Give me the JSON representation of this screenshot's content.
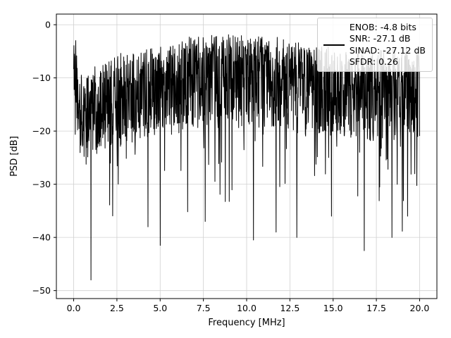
{
  "figure": {
    "background": "#ffffff"
  },
  "chart_data": {
    "type": "line",
    "title": "",
    "xlabel": "Frequency [MHz]",
    "ylabel": "PSD [dB]",
    "xlim": [
      -1,
      21
    ],
    "ylim": [
      -51.5,
      2
    ],
    "xticks": [
      0.0,
      2.5,
      5.0,
      7.5,
      10.0,
      12.5,
      15.0,
      17.5,
      20.0
    ],
    "xtick_labels": [
      "0.0",
      "2.5",
      "5.0",
      "7.5",
      "10.0",
      "12.5",
      "15.0",
      "17.5",
      "20.0"
    ],
    "yticks": [
      0,
      -10,
      -20,
      -30,
      -40,
      -50
    ],
    "ytick_labels": [
      "0",
      "−10",
      "−20",
      "−30",
      "−40",
      "−50"
    ],
    "grid": true,
    "grid_color": "#d0d0d0",
    "line_color": "#000000",
    "line_width": 1.0,
    "series_name": "psd-noise-spectrum",
    "noise_model": {
      "seed": 42,
      "n_points": 1500,
      "x_start": 0.0,
      "x_end": 20.0,
      "top_envelope": [
        [
          0.0,
          -2.0
        ],
        [
          0.15,
          -3.0
        ],
        [
          0.4,
          -8.0
        ],
        [
          1.2,
          -8.5
        ],
        [
          2.0,
          -7.0
        ],
        [
          3.0,
          -5.5
        ],
        [
          4.5,
          -4.0
        ],
        [
          6.0,
          -3.0
        ],
        [
          7.5,
          -2.5
        ],
        [
          9.0,
          -2.0
        ],
        [
          10.5,
          -2.5
        ],
        [
          12.0,
          -3.0
        ],
        [
          13.5,
          -4.0
        ],
        [
          15.0,
          -4.5
        ],
        [
          16.5,
          -5.0
        ],
        [
          18.0,
          -5.0
        ],
        [
          20.0,
          -4.5
        ]
      ],
      "band_depth": 17,
      "spike_probability": 0.05,
      "spike_extra_min": 4,
      "spike_extra_max": 20,
      "deep_spikes": [
        [
          1.0,
          -48.0
        ],
        [
          4.3,
          -38.0
        ],
        [
          5.0,
          -41.5
        ],
        [
          7.6,
          -37.0
        ],
        [
          10.4,
          -40.5
        ],
        [
          11.7,
          -39.0
        ],
        [
          12.9,
          -40.0
        ],
        [
          14.9,
          -36.0
        ],
        [
          16.8,
          -42.5
        ],
        [
          18.4,
          -40.0
        ],
        [
          19.3,
          -36.0
        ]
      ]
    }
  },
  "legend": {
    "lines": [
      "ENOB: -4.8 bits",
      "SNR: -27.1 dB",
      "SINAD: -27.12 dB",
      "SFDR: 0.26"
    ],
    "handle_color": "#000000"
  }
}
